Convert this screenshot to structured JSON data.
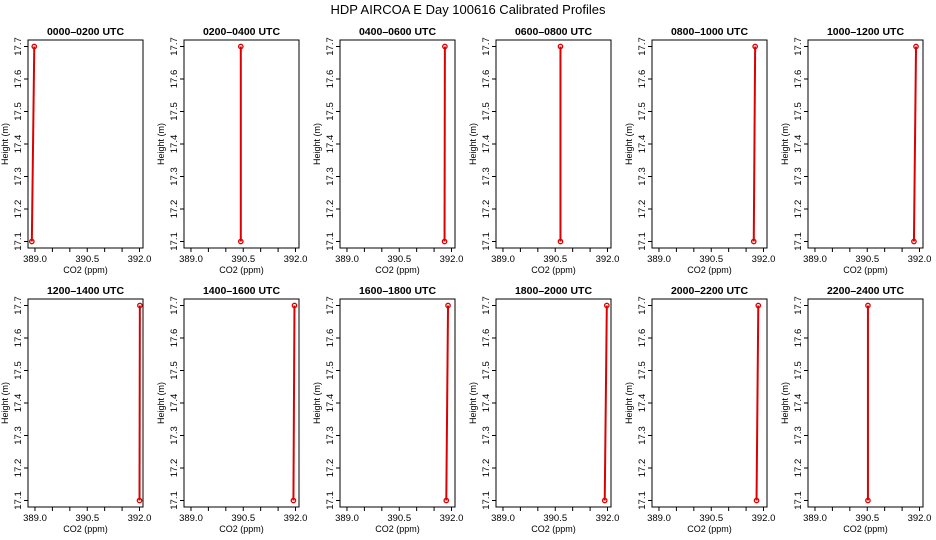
{
  "title": "HDP AIRCOA E  Day 100616  Calibrated Profiles",
  "chart_data": {
    "type": "line",
    "xlabel": "CO2 (ppm)",
    "ylabel": "Height (m)",
    "xlim": [
      388.8,
      392.1
    ],
    "ylim": [
      17.08,
      17.72
    ],
    "xticks": [
      "389.0",
      "390.5",
      "392.0"
    ],
    "xtick_values": [
      389.0,
      389.5,
      390.0,
      390.5,
      391.0,
      391.5,
      392.0
    ],
    "yticks": [
      "17.1",
      "17.2",
      "17.3",
      "17.4",
      "17.5",
      "17.6",
      "17.7"
    ],
    "ytick_values": [
      17.1,
      17.2,
      17.3,
      17.4,
      17.5,
      17.6,
      17.7
    ],
    "color": "#dd0000",
    "panels": [
      {
        "title": "0000–0200 UTC",
        "co2": [
          388.91,
          388.98
        ],
        "height": [
          17.1,
          17.7
        ]
      },
      {
        "title": "0200–0400 UTC",
        "co2": [
          390.43,
          390.43
        ],
        "height": [
          17.1,
          17.7
        ]
      },
      {
        "title": "0400–0600 UTC",
        "co2": [
          391.8,
          391.81
        ],
        "height": [
          17.1,
          17.7
        ]
      },
      {
        "title": "0600–0800 UTC",
        "co2": [
          390.65,
          390.65
        ],
        "height": [
          17.1,
          17.7
        ]
      },
      {
        "title": "0800–1000 UTC",
        "co2": [
          391.72,
          391.76
        ],
        "height": [
          17.1,
          17.7
        ]
      },
      {
        "title": "1000–1200 UTC",
        "co2": [
          391.84,
          391.9
        ],
        "height": [
          17.1,
          17.7
        ]
      },
      {
        "title": "1200–1400 UTC",
        "co2": [
          392.0,
          392.01
        ],
        "height": [
          17.1,
          17.7
        ]
      },
      {
        "title": "1400–1600 UTC",
        "co2": [
          391.94,
          391.97
        ],
        "height": [
          17.1,
          17.7
        ]
      },
      {
        "title": "1600–1800 UTC",
        "co2": [
          391.85,
          391.9
        ],
        "height": [
          17.1,
          17.7
        ]
      },
      {
        "title": "1800–2000 UTC",
        "co2": [
          391.92,
          391.98
        ],
        "height": [
          17.1,
          17.7
        ]
      },
      {
        "title": "2000–2200 UTC",
        "co2": [
          391.8,
          391.85
        ],
        "height": [
          17.1,
          17.7
        ]
      },
      {
        "title": "2200–2400 UTC",
        "co2": [
          390.52,
          390.52
        ],
        "height": [
          17.1,
          17.7
        ]
      }
    ]
  }
}
